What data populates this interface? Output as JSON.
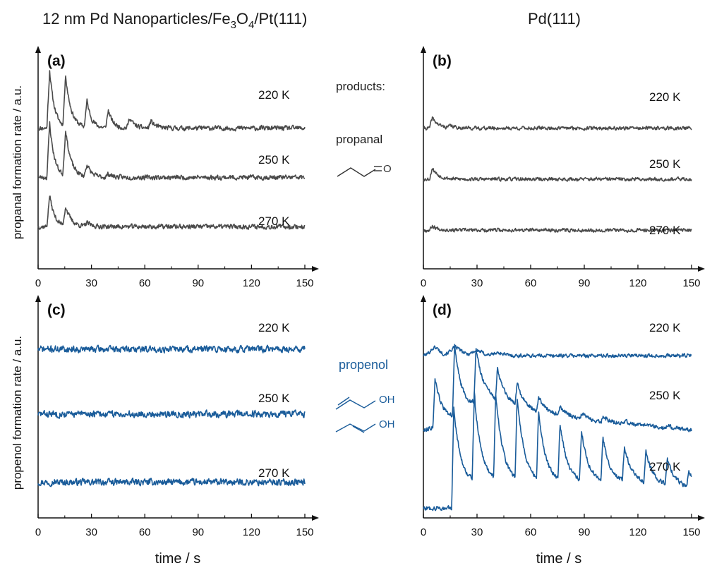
{
  "figure": {
    "title_left": "12 nm Pd Nanoparticles/Fe3O4/Pt(111)",
    "title_left_parts": {
      "a": "12 nm Pd Nanoparticles/Fe",
      "s1": "3",
      "b": "O",
      "s2": "4",
      "c": "/Pt(111)"
    },
    "title_right": "Pd(111)",
    "ylabel_top": "propanal formation rate / a.u.",
    "ylabel_bottom": "propenol formation rate / a.u.",
    "xlabel_left": "time / s",
    "xlabel_right": "time / s",
    "annotations": {
      "products_label": "products:",
      "propanal_label": "propanal",
      "propanal_atom": "O",
      "propenol_label": "propenol",
      "propenol_oh_1": "OH",
      "propenol_oh_2": "OH"
    },
    "colors": {
      "propanal": "#4a4a4a",
      "propenol": "#1a5c9a",
      "axis": "#111111"
    }
  },
  "chart_data": [
    {
      "id": "a",
      "panel_label": "(a)",
      "type": "line",
      "xlabel": "",
      "ylabel": "propanal formation rate / a.u.",
      "xlim": [
        0,
        155
      ],
      "xticks": [
        0,
        30,
        60,
        90,
        120,
        150
      ],
      "xtick_labels": [
        "0",
        "30",
        "60",
        "90",
        "120",
        "150"
      ],
      "color": "#4a4a4a",
      "series": [
        {
          "name": "220 K",
          "baseline": 4.0,
          "noise": 0.06,
          "seed": 11,
          "peaks": [
            [
              6.5,
              1.65,
              1.6
            ],
            [
              15.5,
              1.45,
              1.8
            ],
            [
              27.5,
              0.75,
              1.5
            ],
            [
              39.5,
              0.5,
              1.5
            ],
            [
              51.5,
              0.3,
              1.5
            ],
            [
              63.5,
              0.2,
              1.5
            ]
          ]
        },
        {
          "name": "250 K",
          "baseline": 2.6,
          "noise": 0.06,
          "seed": 23,
          "peaks": [
            [
              6.5,
              1.55,
              1.6
            ],
            [
              15.5,
              1.3,
              1.8
            ],
            [
              27.5,
              0.35,
              1.5
            ],
            [
              39.5,
              0.1,
              1.5
            ]
          ]
        },
        {
          "name": "270 K",
          "baseline": 1.2,
          "noise": 0.06,
          "seed": 37,
          "peaks": [
            [
              6.5,
              0.9,
              1.6
            ],
            [
              15.5,
              0.55,
              1.8
            ],
            [
              27.5,
              0.1,
              1.5
            ]
          ]
        }
      ]
    },
    {
      "id": "b",
      "panel_label": "(b)",
      "type": "line",
      "xlabel": "",
      "ylabel": "",
      "xlim": [
        0,
        155
      ],
      "xticks": [
        0,
        30,
        60,
        90,
        120,
        150
      ],
      "xtick_labels": [
        "0",
        "30",
        "60",
        "90",
        "120",
        "150"
      ],
      "color": "#4a4a4a",
      "series": [
        {
          "name": "220 K",
          "baseline": 4.0,
          "noise": 0.045,
          "seed": 41,
          "peaks": [
            [
              5.0,
              0.3,
              2.0
            ],
            [
              15.0,
              0.06,
              2.0
            ]
          ]
        },
        {
          "name": "250 K",
          "baseline": 2.55,
          "noise": 0.045,
          "seed": 53,
          "peaks": [
            [
              5.0,
              0.32,
              2.0
            ]
          ]
        },
        {
          "name": "270 K",
          "baseline": 1.1,
          "noise": 0.045,
          "seed": 67,
          "peaks": [
            [
              5.0,
              0.12,
              2.0
            ]
          ]
        }
      ]
    },
    {
      "id": "c",
      "panel_label": "(c)",
      "type": "line",
      "xlabel": "time / s",
      "ylabel": "propenol formation rate / a.u.",
      "xlim": [
        0,
        155
      ],
      "xticks": [
        0,
        30,
        60,
        90,
        120,
        150
      ],
      "xtick_labels": [
        "0",
        "30",
        "60",
        "90",
        "120",
        "150"
      ],
      "color": "#1a5c9a",
      "series": [
        {
          "name": "220 K",
          "baseline": 5.2,
          "noise": 0.09,
          "seed": 71,
          "peaks": []
        },
        {
          "name": "250 K",
          "baseline": 3.2,
          "noise": 0.09,
          "seed": 83,
          "peaks": []
        },
        {
          "name": "270 K",
          "baseline": 1.1,
          "noise": 0.09,
          "seed": 97,
          "peaks": []
        }
      ]
    },
    {
      "id": "d",
      "panel_label": "(d)",
      "type": "line",
      "xlabel": "time / s",
      "ylabel": "",
      "xlim": [
        0,
        155
      ],
      "xticks": [
        0,
        30,
        60,
        90,
        120,
        150
      ],
      "xtick_labels": [
        "0",
        "30",
        "60",
        "90",
        "120",
        "150"
      ],
      "color": "#1a5c9a",
      "series": [
        {
          "name": "220 K",
          "baseline": 5.0,
          "noise": 0.05,
          "seed": 101,
          "bumps": [
            [
              6.5,
              0.25,
              2.5
            ],
            [
              18.0,
              0.25,
              3.0
            ],
            [
              30.0,
              0.15,
              3.0
            ],
            [
              42.0,
              0.08,
              3.0
            ]
          ]
        },
        {
          "name": "250 K",
          "baseline": 2.7,
          "noise": 0.06,
          "seed": 113,
          "pulses": [
            [
              6.5,
              1.45
            ],
            [
              17.5,
              2.2
            ],
            [
              29.5,
              1.8
            ],
            [
              41.5,
              1.1
            ],
            [
              52.5,
              0.7
            ],
            [
              64.5,
              0.45
            ],
            [
              76.5,
              0.3
            ],
            [
              88.5,
              0.2
            ],
            [
              100.5,
              0.15
            ],
            [
              112.5,
              0.1
            ],
            [
              124.5,
              0.08
            ],
            [
              136.5,
              0.06
            ]
          ],
          "drift": [
            [
              0,
              0.0
            ],
            [
              15,
              0.3
            ],
            [
              35,
              0.9
            ],
            [
              60,
              0.6
            ],
            [
              90,
              0.3
            ],
            [
              120,
              0.15
            ],
            [
              150,
              0.0
            ]
          ]
        },
        {
          "name": "270 K",
          "baseline": 0.3,
          "noise": 0.06,
          "seed": 127,
          "pulses": [
            [
              17.0,
              2.6
            ],
            [
              28.5,
              2.7
            ],
            [
              40.5,
              2.75
            ],
            [
              52.5,
              2.65
            ],
            [
              64.5,
              2.15
            ],
            [
              76.5,
              1.85
            ],
            [
              88.5,
              1.6
            ],
            [
              100.5,
              1.4
            ],
            [
              112.5,
              1.15
            ],
            [
              124.5,
              1.0
            ],
            [
              136.5,
              0.85
            ],
            [
              148.5,
              0.55
            ]
          ],
          "drift": [
            [
              0,
              0.0
            ],
            [
              16,
              0.0
            ],
            [
              17,
              0.5
            ],
            [
              30,
              0.75
            ],
            [
              60,
              0.75
            ],
            [
              90,
              0.75
            ],
            [
              120,
              0.75
            ],
            [
              150,
              0.6
            ]
          ]
        }
      ]
    }
  ]
}
